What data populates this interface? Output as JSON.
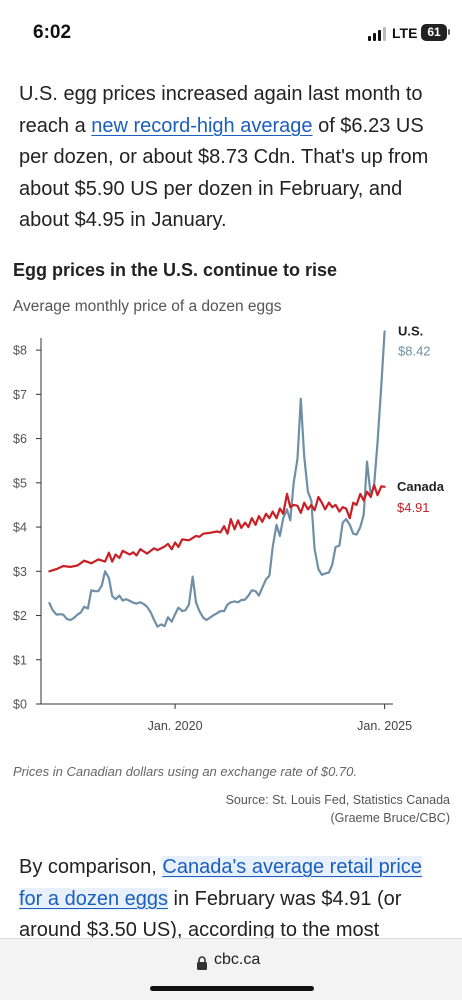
{
  "status_bar": {
    "time": "6:02",
    "network": "LTE",
    "battery": "61"
  },
  "article": {
    "para1": {
      "before": "U.S. egg prices increased again last month to reach a ",
      "link": "new record-high average",
      "after": " of $6.23 US per dozen, or about $8.73 Cdn. That's up from about $5.90 US per dozen in February, and about $4.95 in January."
    },
    "para2": {
      "before": "By comparison, ",
      "link": "Canada's average retail price for a dozen eggs",
      "after": " in February was $4.91 (or around $3.50 US), according to the most"
    }
  },
  "chart": {
    "title": "Egg prices in the U.S. continue to rise",
    "subtitle": "Average monthly price of a dozen eggs",
    "note": "Prices in Canadian dollars using an exchange rate of $0.70.",
    "source_line1": "Source: St. Louis Fed, Statistics Canada",
    "source_line2": "(Graeme Bruce/CBC)"
  },
  "chart_data": {
    "type": "line",
    "ylim": [
      0,
      8.5
    ],
    "xlim": [
      2016.8,
      2025.2
    ],
    "y_ticks": [
      "$0",
      "$1",
      "$2",
      "$3",
      "$4",
      "$5",
      "$6",
      "$7",
      "$8"
    ],
    "x_ticks": [
      {
        "label": "Jan. 2020",
        "value": 2020.0
      },
      {
        "label": "Jan. 2025",
        "value": 2025.0
      }
    ],
    "colors": {
      "us": "#6e8fa6",
      "canada": "#c91f25"
    },
    "series": [
      {
        "name": "U.S.",
        "end_label": "$8.42",
        "points": [
          [
            2017.0,
            2.28
          ],
          [
            2017.08,
            2.12
          ],
          [
            2017.17,
            2.02
          ],
          [
            2017.25,
            2.03
          ],
          [
            2017.33,
            2.02
          ],
          [
            2017.42,
            1.92
          ],
          [
            2017.5,
            1.9
          ],
          [
            2017.58,
            1.94
          ],
          [
            2017.67,
            2.02
          ],
          [
            2017.75,
            2.07
          ],
          [
            2017.83,
            2.2
          ],
          [
            2017.92,
            2.16
          ],
          [
            2018.0,
            2.57
          ],
          [
            2018.08,
            2.55
          ],
          [
            2018.17,
            2.55
          ],
          [
            2018.25,
            2.68
          ],
          [
            2018.33,
            3.0
          ],
          [
            2018.42,
            2.85
          ],
          [
            2018.5,
            2.44
          ],
          [
            2018.58,
            2.37
          ],
          [
            2018.67,
            2.45
          ],
          [
            2018.75,
            2.34
          ],
          [
            2018.83,
            2.37
          ],
          [
            2018.92,
            2.33
          ],
          [
            2019.0,
            2.29
          ],
          [
            2019.08,
            2.27
          ],
          [
            2019.17,
            2.3
          ],
          [
            2019.25,
            2.26
          ],
          [
            2019.33,
            2.2
          ],
          [
            2019.42,
            2.07
          ],
          [
            2019.5,
            1.9
          ],
          [
            2019.58,
            1.75
          ],
          [
            2019.67,
            1.8
          ],
          [
            2019.75,
            1.76
          ],
          [
            2019.83,
            1.96
          ],
          [
            2019.92,
            1.86
          ],
          [
            2020.0,
            2.03
          ],
          [
            2020.08,
            2.18
          ],
          [
            2020.17,
            2.1
          ],
          [
            2020.25,
            2.12
          ],
          [
            2020.33,
            2.25
          ],
          [
            2020.42,
            2.88
          ],
          [
            2020.5,
            2.3
          ],
          [
            2020.58,
            2.1
          ],
          [
            2020.67,
            1.95
          ],
          [
            2020.75,
            1.9
          ],
          [
            2020.83,
            1.95
          ],
          [
            2020.92,
            2.01
          ],
          [
            2021.0,
            2.05
          ],
          [
            2021.08,
            2.1
          ],
          [
            2021.17,
            2.1
          ],
          [
            2021.25,
            2.25
          ],
          [
            2021.33,
            2.3
          ],
          [
            2021.42,
            2.32
          ],
          [
            2021.5,
            2.3
          ],
          [
            2021.58,
            2.35
          ],
          [
            2021.67,
            2.36
          ],
          [
            2021.75,
            2.45
          ],
          [
            2021.83,
            2.57
          ],
          [
            2021.92,
            2.55
          ],
          [
            2022.0,
            2.45
          ],
          [
            2022.08,
            2.63
          ],
          [
            2022.17,
            2.82
          ],
          [
            2022.25,
            2.9
          ],
          [
            2022.33,
            3.55
          ],
          [
            2022.42,
            4.05
          ],
          [
            2022.5,
            3.8
          ],
          [
            2022.58,
            4.2
          ],
          [
            2022.67,
            4.4
          ],
          [
            2022.75,
            4.15
          ],
          [
            2022.83,
            5.0
          ],
          [
            2022.92,
            5.55
          ],
          [
            2023.0,
            6.9
          ],
          [
            2023.08,
            5.6
          ],
          [
            2023.17,
            4.8
          ],
          [
            2023.25,
            4.6
          ],
          [
            2023.33,
            3.5
          ],
          [
            2023.42,
            3.05
          ],
          [
            2023.5,
            2.92
          ],
          [
            2023.58,
            2.95
          ],
          [
            2023.67,
            2.97
          ],
          [
            2023.75,
            3.15
          ],
          [
            2023.83,
            3.55
          ],
          [
            2023.92,
            3.58
          ],
          [
            2024.0,
            4.1
          ],
          [
            2024.08,
            4.18
          ],
          [
            2024.17,
            4.05
          ],
          [
            2024.25,
            3.85
          ],
          [
            2024.33,
            3.83
          ],
          [
            2024.42,
            4.0
          ],
          [
            2024.5,
            4.28
          ],
          [
            2024.58,
            5.48
          ],
          [
            2024.67,
            4.7
          ],
          [
            2024.75,
            4.95
          ],
          [
            2024.83,
            5.9
          ],
          [
            2024.92,
            7.2
          ],
          [
            2025.0,
            8.42
          ]
        ]
      },
      {
        "name": "Canada",
        "end_label": "$4.91",
        "points": [
          [
            2017.0,
            3.0
          ],
          [
            2017.17,
            3.05
          ],
          [
            2017.33,
            3.12
          ],
          [
            2017.5,
            3.1
          ],
          [
            2017.67,
            3.13
          ],
          [
            2017.83,
            3.24
          ],
          [
            2018.0,
            3.18
          ],
          [
            2018.17,
            3.27
          ],
          [
            2018.33,
            3.22
          ],
          [
            2018.42,
            3.42
          ],
          [
            2018.5,
            3.22
          ],
          [
            2018.58,
            3.38
          ],
          [
            2018.67,
            3.3
          ],
          [
            2018.75,
            3.46
          ],
          [
            2018.92,
            3.38
          ],
          [
            2019.0,
            3.43
          ],
          [
            2019.08,
            3.36
          ],
          [
            2019.17,
            3.5
          ],
          [
            2019.33,
            3.4
          ],
          [
            2019.5,
            3.52
          ],
          [
            2019.58,
            3.48
          ],
          [
            2019.75,
            3.56
          ],
          [
            2019.83,
            3.62
          ],
          [
            2019.92,
            3.5
          ],
          [
            2020.0,
            3.65
          ],
          [
            2020.08,
            3.55
          ],
          [
            2020.17,
            3.72
          ],
          [
            2020.33,
            3.7
          ],
          [
            2020.5,
            3.8
          ],
          [
            2020.58,
            3.78
          ],
          [
            2020.67,
            3.85
          ],
          [
            2020.83,
            3.87
          ],
          [
            2021.0,
            3.9
          ],
          [
            2021.08,
            3.88
          ],
          [
            2021.17,
            4.02
          ],
          [
            2021.25,
            3.85
          ],
          [
            2021.33,
            4.18
          ],
          [
            2021.42,
            3.95
          ],
          [
            2021.5,
            4.15
          ],
          [
            2021.58,
            3.98
          ],
          [
            2021.67,
            4.1
          ],
          [
            2021.75,
            4.0
          ],
          [
            2021.83,
            4.2
          ],
          [
            2021.92,
            4.05
          ],
          [
            2022.0,
            4.25
          ],
          [
            2022.08,
            4.12
          ],
          [
            2022.17,
            4.3
          ],
          [
            2022.25,
            4.2
          ],
          [
            2022.33,
            4.35
          ],
          [
            2022.42,
            4.2
          ],
          [
            2022.5,
            4.42
          ],
          [
            2022.58,
            4.3
          ],
          [
            2022.67,
            4.75
          ],
          [
            2022.75,
            4.45
          ],
          [
            2022.83,
            4.5
          ],
          [
            2022.92,
            4.48
          ],
          [
            2023.0,
            4.32
          ],
          [
            2023.08,
            4.55
          ],
          [
            2023.17,
            4.4
          ],
          [
            2023.25,
            4.5
          ],
          [
            2023.33,
            4.38
          ],
          [
            2023.42,
            4.68
          ],
          [
            2023.5,
            4.55
          ],
          [
            2023.58,
            4.4
          ],
          [
            2023.67,
            4.55
          ],
          [
            2023.75,
            4.45
          ],
          [
            2023.83,
            4.5
          ],
          [
            2023.92,
            4.35
          ],
          [
            2024.0,
            4.45
          ],
          [
            2024.08,
            4.42
          ],
          [
            2024.17,
            4.2
          ],
          [
            2024.25,
            4.55
          ],
          [
            2024.33,
            4.5
          ],
          [
            2024.42,
            4.75
          ],
          [
            2024.5,
            4.6
          ],
          [
            2024.58,
            4.8
          ],
          [
            2024.67,
            4.68
          ],
          [
            2024.75,
            4.95
          ],
          [
            2024.83,
            4.72
          ],
          [
            2024.92,
            4.92
          ],
          [
            2025.0,
            4.91
          ]
        ]
      }
    ]
  },
  "browser": {
    "url": "cbc.ca"
  }
}
